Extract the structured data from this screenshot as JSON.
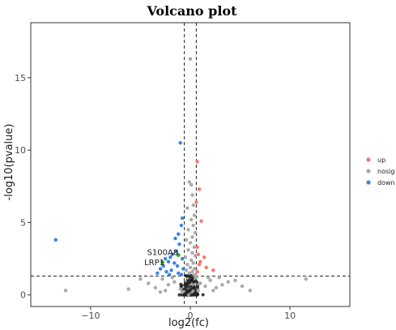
{
  "chart_data": {
    "type": "scatter",
    "title": "Volcano plot",
    "xlabel": "log2(fc)",
    "ylabel": "-log10(pvalue)",
    "xlim": [
      -16,
      16
    ],
    "ylim": [
      -0.8,
      18.8
    ],
    "xticks": [
      -10,
      0,
      10
    ],
    "yticks": [
      0,
      5,
      10,
      15
    ],
    "grid": false,
    "threshold_lines": {
      "x": [
        -0.6,
        0.6
      ],
      "y": [
        1.3
      ]
    },
    "legend": {
      "placement": "right",
      "entries": [
        "up",
        "nosig",
        "down"
      ]
    },
    "colors": {
      "up": "#f8766d",
      "nosig": "#a9a9a9",
      "down": "#3a83e6",
      "nosig_dense": "#222222",
      "highlight": "#2ca02c"
    },
    "annotations": [
      {
        "text": "S100A8",
        "x": -1.2,
        "y": 2.75,
        "point": [
          -1.2,
          2.75
        ]
      },
      {
        "text": "LRP1",
        "x": -2.6,
        "y": 2.05,
        "point": [
          -2.8,
          2.25
        ]
      }
    ],
    "series": [
      {
        "name": "up",
        "points": [
          [
            0.7,
            9.2
          ],
          [
            0.9,
            7.3
          ],
          [
            0.6,
            6.4
          ],
          [
            1.1,
            5.1
          ],
          [
            0.8,
            2.8
          ],
          [
            1.4,
            2.6
          ],
          [
            2.3,
            1.7
          ],
          [
            0.7,
            1.6
          ],
          [
            0.9,
            2.1
          ],
          [
            1.6,
            1.9
          ],
          [
            0.7,
            3.3
          ],
          [
            1.0,
            2.3
          ]
        ]
      },
      {
        "name": "nosig",
        "points": [
          [
            0.0,
            16.3
          ],
          [
            -0.1,
            7.8
          ],
          [
            0.1,
            7.6
          ],
          [
            0.2,
            6.9
          ],
          [
            0.3,
            6.2
          ],
          [
            -0.3,
            6.0
          ],
          [
            0.4,
            5.5
          ],
          [
            0.1,
            5.2
          ],
          [
            0.3,
            4.8
          ],
          [
            -0.2,
            4.5
          ],
          [
            0.5,
            4.3
          ],
          [
            0.2,
            4.0
          ],
          [
            -0.4,
            3.8
          ],
          [
            0.0,
            3.6
          ],
          [
            0.4,
            3.3
          ],
          [
            -0.2,
            3.1
          ],
          [
            0.2,
            2.9
          ],
          [
            0.5,
            2.7
          ],
          [
            -0.5,
            2.6
          ],
          [
            0.1,
            2.4
          ],
          [
            0.3,
            2.2
          ],
          [
            -0.3,
            2.1
          ],
          [
            0.0,
            1.9
          ],
          [
            0.4,
            1.8
          ],
          [
            -0.4,
            1.7
          ],
          [
            0.2,
            1.6
          ],
          [
            -0.1,
            1.5
          ],
          [
            0.5,
            1.4
          ],
          [
            -12.5,
            0.3
          ],
          [
            11.6,
            1.1
          ],
          [
            -5.0,
            1.1
          ],
          [
            -4.2,
            0.8
          ],
          [
            -3.5,
            0.5
          ],
          [
            -2.8,
            1.1
          ],
          [
            -2.2,
            0.7
          ],
          [
            -1.6,
            0.9
          ],
          [
            -1.0,
            0.4
          ],
          [
            1.0,
            0.8
          ],
          [
            1.5,
            0.6
          ],
          [
            2.0,
            1.0
          ],
          [
            2.6,
            0.5
          ],
          [
            3.2,
            0.7
          ],
          [
            3.8,
            0.9
          ],
          [
            4.5,
            1.0
          ],
          [
            5.2,
            0.6
          ],
          [
            -6.2,
            0.4
          ],
          [
            6.0,
            0.3
          ],
          [
            -3.0,
            0.2
          ],
          [
            -1.8,
            1.2
          ],
          [
            1.8,
            1.2
          ],
          [
            2.9,
            1.2
          ],
          [
            0.8,
            0.3
          ],
          [
            -0.8,
            0.2
          ],
          [
            -2.5,
            0.3
          ],
          [
            2.3,
            0.3
          ]
        ]
      },
      {
        "name": "down",
        "points": [
          [
            -13.5,
            3.8
          ],
          [
            -1.0,
            10.5
          ],
          [
            -0.8,
            5.3
          ],
          [
            -0.9,
            4.8
          ],
          [
            -1.2,
            4.2
          ],
          [
            -1.5,
            3.9
          ],
          [
            -1.1,
            3.5
          ],
          [
            -1.4,
            3.0
          ],
          [
            -1.8,
            2.8
          ],
          [
            -2.0,
            2.6
          ],
          [
            -2.5,
            2.5
          ],
          [
            -2.2,
            2.3
          ],
          [
            -1.6,
            2.2
          ],
          [
            -1.3,
            2.0
          ],
          [
            -2.7,
            2.0
          ],
          [
            -3.0,
            1.8
          ],
          [
            -1.9,
            1.7
          ],
          [
            -2.4,
            1.6
          ],
          [
            -1.2,
            1.5
          ],
          [
            -0.9,
            1.4
          ],
          [
            -0.7,
            1.8
          ],
          [
            -0.8,
            2.5
          ],
          [
            -3.3,
            1.5
          ],
          [
            -2.1,
            1.4
          ]
        ]
      }
    ]
  }
}
